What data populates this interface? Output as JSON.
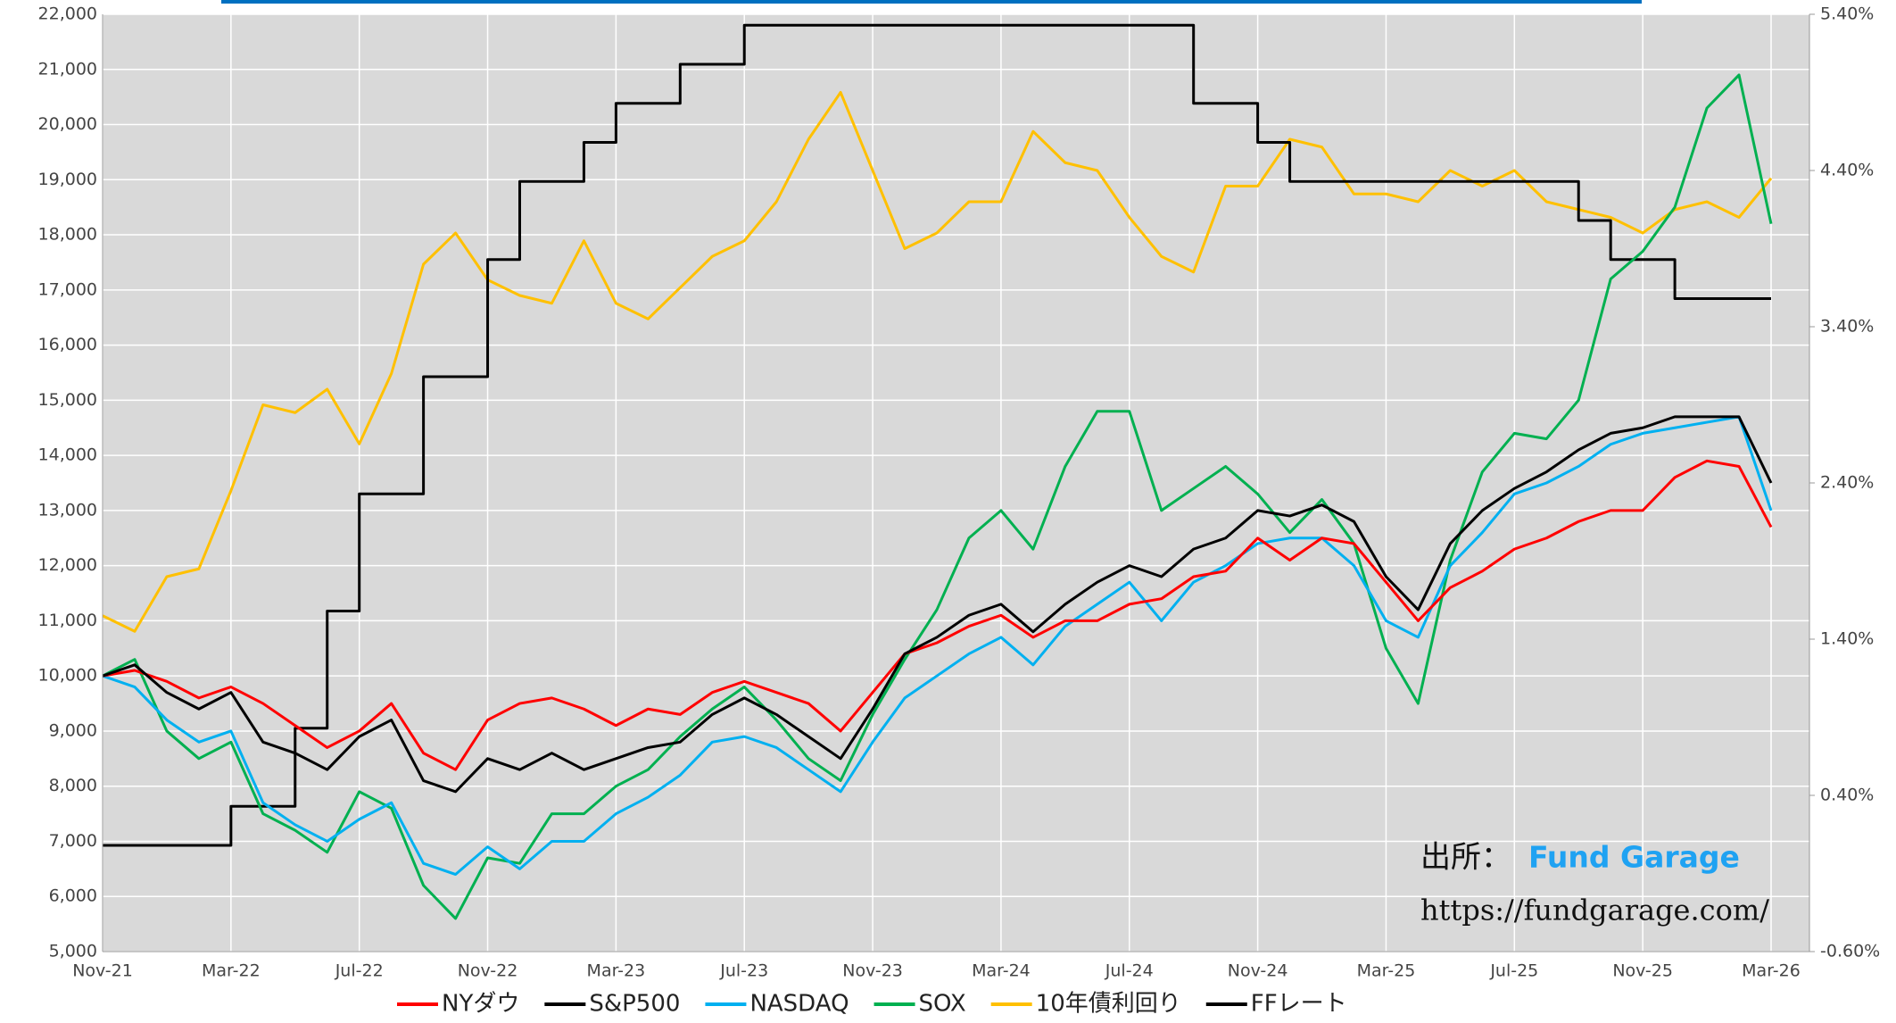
{
  "chart_data": {
    "type": "line",
    "categories": [
      "Nov-21",
      null,
      null,
      null,
      "Mar-22",
      null,
      null,
      null,
      "Jul-22",
      null,
      null,
      null,
      "Nov-22",
      null,
      null,
      null,
      "Mar-23",
      null,
      null,
      null,
      "Jul-23",
      null,
      null,
      null,
      "Nov-23",
      null,
      null,
      null,
      "Mar-24",
      null,
      null,
      null,
      "Jul-24",
      null,
      null,
      null,
      "Nov-24",
      null,
      null,
      null,
      "Mar-25",
      null,
      null,
      null,
      "Jul-25",
      null,
      null,
      null,
      "Nov-25",
      null,
      null,
      null,
      "Mar-26"
    ],
    "series": [
      {
        "name": "NYダウ",
        "color": "#ff0000",
        "values": [
          10000,
          10100,
          9900,
          9600,
          9800,
          9500,
          9100,
          8700,
          9000,
          9500,
          8600,
          8300,
          9200,
          9500,
          9600,
          9400,
          9100,
          9400,
          9300,
          9700,
          9900,
          9700,
          9500,
          9000,
          9700,
          10400,
          10600,
          10900,
          11100,
          10700,
          11000,
          11000,
          11300,
          11400,
          11800,
          11900,
          12500,
          12100,
          12500,
          12400,
          11700,
          11000,
          11600,
          11900,
          12300,
          12500,
          12800,
          13000,
          13000,
          13600,
          13900,
          13800,
          12700
        ]
      },
      {
        "name": "S&P500",
        "color": "#000000",
        "values": [
          10000,
          10200,
          9700,
          9400,
          9700,
          8800,
          8600,
          8300,
          8900,
          9200,
          8100,
          7900,
          8500,
          8300,
          8600,
          8300,
          8500,
          8700,
          8800,
          9300,
          9600,
          9300,
          8900,
          8500,
          9400,
          10400,
          10700,
          11100,
          11300,
          10800,
          11300,
          11700,
          12000,
          11800,
          12300,
          12500,
          13000,
          12900,
          13100,
          12800,
          11800,
          11200,
          12400,
          13000,
          13400,
          13700,
          14100,
          14400,
          14500,
          14700,
          14700,
          14700,
          13500
        ]
      },
      {
        "name": "NASDAQ",
        "color": "#00b0f0",
        "values": [
          10000,
          9800,
          9200,
          8800,
          9000,
          7700,
          7300,
          7000,
          7400,
          7700,
          6600,
          6400,
          6900,
          6500,
          7000,
          7000,
          7500,
          7800,
          8200,
          8800,
          8900,
          8700,
          8300,
          7900,
          8800,
          9600,
          10000,
          10400,
          10700,
          10200,
          10900,
          11300,
          11700,
          11000,
          11700,
          12000,
          12400,
          12500,
          12500,
          12000,
          11000,
          10700,
          12000,
          12600,
          13300,
          13500,
          13800,
          14200,
          14400,
          14500,
          14600,
          14700,
          13000
        ]
      },
      {
        "name": "SOX",
        "color": "#00b050",
        "values": [
          10000,
          10300,
          9000,
          8500,
          8800,
          7500,
          7200,
          6800,
          7900,
          7600,
          6200,
          5600,
          6700,
          6600,
          7500,
          7500,
          8000,
          8300,
          8900,
          9400,
          9800,
          9200,
          8500,
          8100,
          9300,
          10300,
          11200,
          12500,
          13000,
          12300,
          13800,
          14800,
          14800,
          13000,
          13400,
          13800,
          13300,
          12600,
          13200,
          12400,
          10500,
          9500,
          12100,
          13700,
          14400,
          14300,
          15000,
          17200,
          17700,
          18500,
          20300,
          20900,
          18200
        ]
      },
      {
        "name": "10年債利回り",
        "color": "#ffc000",
        "axis": "y2",
        "values": [
          1.55,
          1.45,
          1.8,
          1.85,
          2.35,
          2.9,
          2.85,
          3.0,
          2.65,
          3.1,
          3.8,
          4.0,
          3.7,
          3.6,
          3.55,
          3.95,
          3.55,
          3.45,
          3.65,
          3.85,
          3.95,
          4.2,
          4.6,
          4.9,
          4.4,
          3.9,
          4.0,
          4.2,
          4.2,
          4.65,
          4.45,
          4.4,
          4.1,
          3.85,
          3.75,
          4.3,
          4.3,
          4.6,
          4.55,
          4.25,
          4.25,
          4.2,
          4.4,
          4.3,
          4.4,
          4.2,
          4.15,
          4.1,
          4.0,
          4.15,
          4.2,
          4.1,
          4.35
        ]
      },
      {
        "name": "FFレート",
        "color": "#000000",
        "axis": "y2",
        "step": true,
        "values": [
          0.08,
          0.08,
          0.08,
          0.08,
          0.33,
          0.33,
          0.83,
          1.58,
          2.33,
          2.33,
          3.08,
          3.08,
          3.83,
          4.33,
          4.33,
          4.58,
          4.83,
          4.83,
          5.08,
          5.08,
          5.33,
          5.33,
          5.33,
          5.33,
          5.33,
          5.33,
          5.33,
          5.33,
          5.33,
          5.33,
          5.33,
          5.33,
          5.33,
          5.33,
          4.83,
          4.83,
          4.58,
          4.33,
          4.33,
          4.33,
          4.33,
          4.33,
          4.33,
          4.33,
          4.33,
          4.33,
          4.08,
          3.83,
          3.83,
          3.58,
          3.58,
          3.58,
          3.58
        ]
      }
    ],
    "ylim": [
      5000,
      22000
    ],
    "yticks": [
      {
        "value": 5000,
        "label": "5,000"
      },
      {
        "value": 6000,
        "label": "6,000"
      },
      {
        "value": 7000,
        "label": "7,000"
      },
      {
        "value": 8000,
        "label": "8,000"
      },
      {
        "value": 9000,
        "label": "9,000"
      },
      {
        "value": 10000,
        "label": "10,000"
      },
      {
        "value": 11000,
        "label": "11,000"
      },
      {
        "value": 12000,
        "label": "12,000"
      },
      {
        "value": 13000,
        "label": "13,000"
      },
      {
        "value": 14000,
        "label": "14,000"
      },
      {
        "value": 15000,
        "label": "15,000"
      },
      {
        "value": 16000,
        "label": "16,000"
      },
      {
        "value": 17000,
        "label": "17,000"
      },
      {
        "value": 18000,
        "label": "18,000"
      },
      {
        "value": 19000,
        "label": "19,000"
      },
      {
        "value": 20000,
        "label": "20,000"
      },
      {
        "value": 21000,
        "label": "21,000"
      },
      {
        "value": 22000,
        "label": "22,000"
      }
    ],
    "y2lim": [
      -0.6,
      5.4
    ],
    "y2ticks": [
      {
        "value": -0.6,
        "label": "-0.60%"
      },
      {
        "value": 0.4,
        "label": "0.40%"
      },
      {
        "value": 1.4,
        "label": "1.40%"
      },
      {
        "value": 2.4,
        "label": "2.40%"
      },
      {
        "value": 3.4,
        "label": "3.40%"
      },
      {
        "value": 4.4,
        "label": "4.40%"
      },
      {
        "value": 5.4,
        "label": "5.40%"
      }
    ],
    "grid": true,
    "legend": "bottom",
    "source_label": "出所：",
    "source_name": "Fund Garage",
    "source_url": "https://fundgarage.com/"
  }
}
